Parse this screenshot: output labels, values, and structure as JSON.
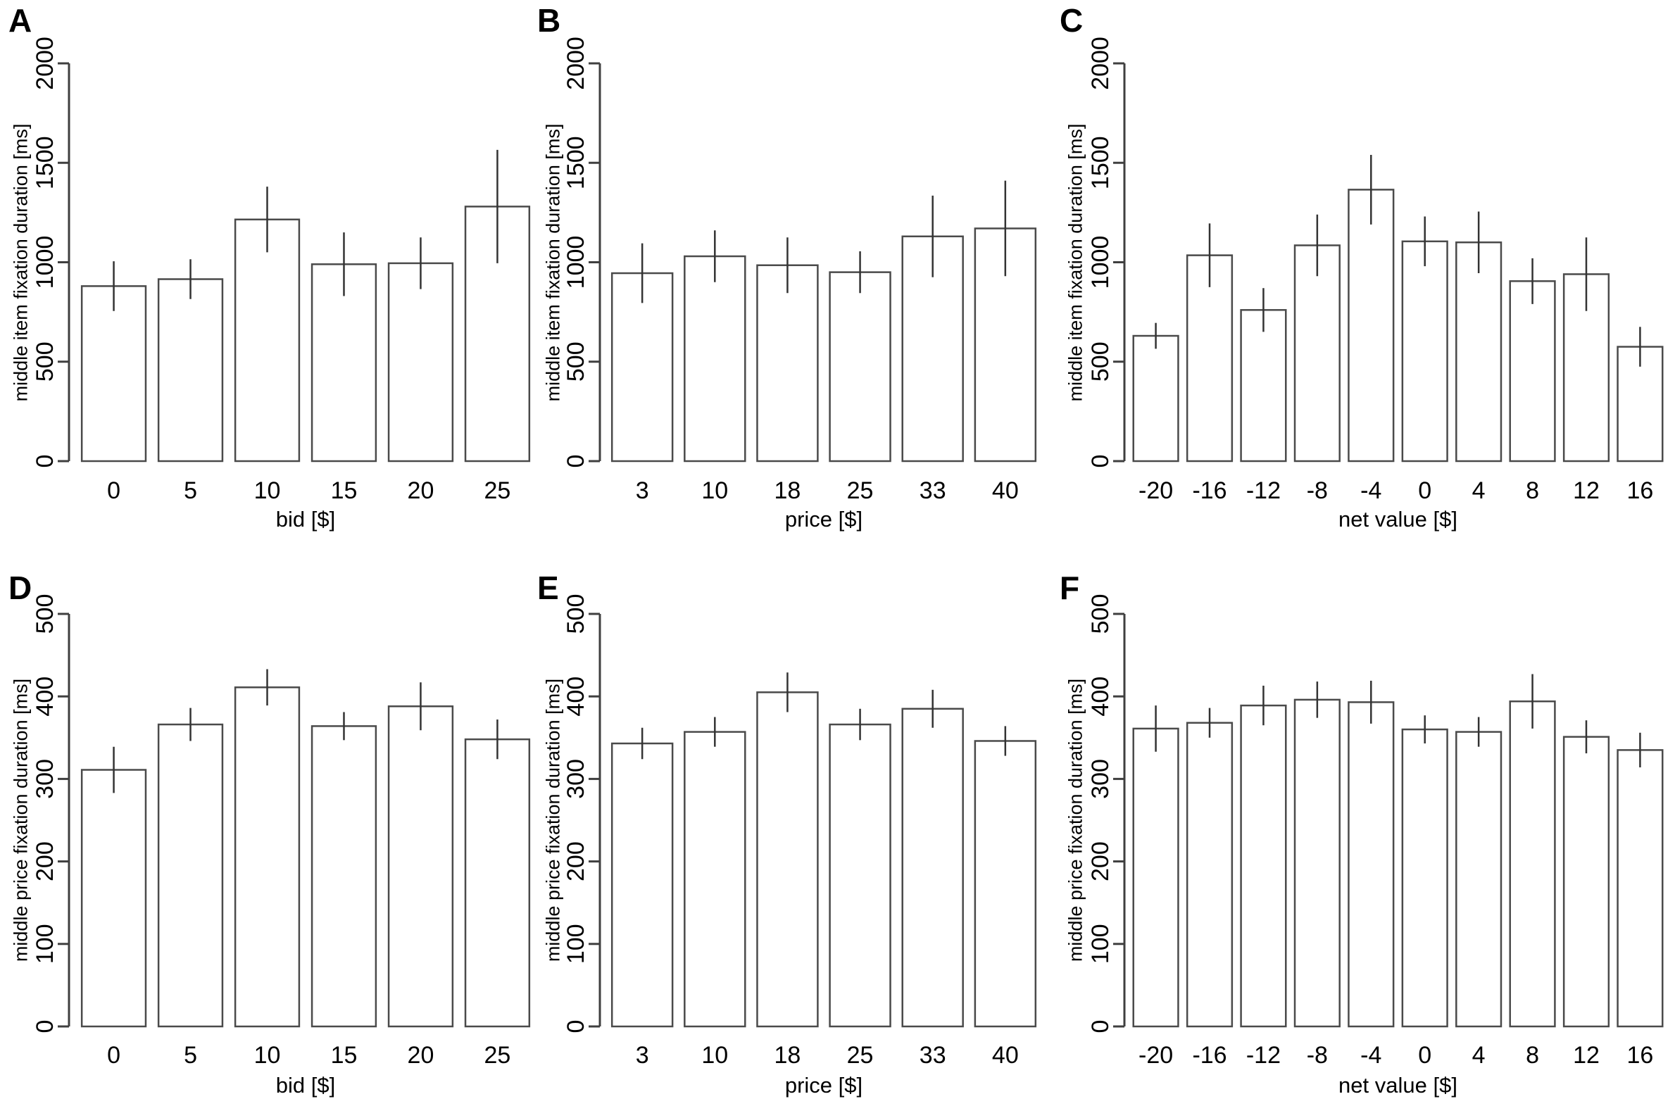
{
  "figure": {
    "background": "#ffffff",
    "axis_color": "#3f3f3f",
    "bar_border_color": "#4a4a4a",
    "bar_fill_color": "#ffffff",
    "error_bar_color": "#333333",
    "text_color": "#000000"
  },
  "chart_data": [
    {
      "type": "bar",
      "panel_label": "A",
      "ylabel": "middle item fixation duration [ms]",
      "xlabel": "bid [$]",
      "categories": [
        "0",
        "5",
        "10",
        "15",
        "20",
        "25"
      ],
      "values": [
        880,
        915,
        1215,
        990,
        995,
        1280
      ],
      "errors": [
        125,
        100,
        165,
        160,
        130,
        285
      ],
      "ylim": [
        0,
        2000
      ],
      "yticks": [
        0,
        500,
        1000,
        1500,
        2000
      ],
      "grid": false,
      "legend": "none"
    },
    {
      "type": "bar",
      "panel_label": "B",
      "ylabel": "middle item fixation duration [ms]",
      "xlabel": "price [$]",
      "categories": [
        "3",
        "10",
        "18",
        "25",
        "33",
        "40"
      ],
      "values": [
        945,
        1030,
        985,
        950,
        1130,
        1170
      ],
      "errors": [
        150,
        130,
        140,
        105,
        205,
        240
      ],
      "ylim": [
        0,
        2000
      ],
      "yticks": [
        0,
        500,
        1000,
        1500,
        2000
      ],
      "grid": false,
      "legend": "none"
    },
    {
      "type": "bar",
      "panel_label": "C",
      "ylabel": "middle item fixation duration [ms]",
      "xlabel": "net value [$]",
      "categories": [
        "-20",
        "-16",
        "-12",
        "-8",
        "-4",
        "0",
        "4",
        "8",
        "12",
        "16"
      ],
      "values": [
        630,
        1035,
        760,
        1085,
        1365,
        1105,
        1100,
        905,
        940,
        575
      ],
      "errors": [
        65,
        160,
        110,
        155,
        175,
        125,
        155,
        115,
        185,
        100
      ],
      "ylim": [
        0,
        2000
      ],
      "yticks": [
        0,
        500,
        1000,
        1500,
        2000
      ],
      "grid": false,
      "legend": "none"
    },
    {
      "type": "bar",
      "panel_label": "D",
      "ylabel": "middle price fixation duration [ms]",
      "xlabel": "bid [$]",
      "categories": [
        "0",
        "5",
        "10",
        "15",
        "20",
        "25"
      ],
      "values": [
        311,
        366,
        411,
        364,
        388,
        348
      ],
      "errors": [
        28,
        20,
        22,
        17,
        29,
        24
      ],
      "ylim": [
        0,
        500
      ],
      "yticks": [
        0,
        100,
        200,
        300,
        400,
        500
      ],
      "grid": false,
      "legend": "none"
    },
    {
      "type": "bar",
      "panel_label": "E",
      "ylabel": "middle price fixation duration [ms]",
      "xlabel": "price [$]",
      "categories": [
        "3",
        "10",
        "18",
        "25",
        "33",
        "40"
      ],
      "values": [
        343,
        357,
        405,
        366,
        385,
        346
      ],
      "errors": [
        19,
        18,
        24,
        19,
        23,
        18
      ],
      "ylim": [
        0,
        500
      ],
      "yticks": [
        0,
        100,
        200,
        300,
        400,
        500
      ],
      "grid": false,
      "legend": "none"
    },
    {
      "type": "bar",
      "panel_label": "F",
      "ylabel": "middle price fixation duration [ms]",
      "xlabel": "net value [$]",
      "categories": [
        "-20",
        "-16",
        "-12",
        "-8",
        "-4",
        "0",
        "4",
        "8",
        "12",
        "16"
      ],
      "values": [
        361,
        368,
        389,
        396,
        393,
        360,
        357,
        394,
        351,
        335
      ],
      "errors": [
        28,
        18,
        24,
        22,
        26,
        17,
        18,
        33,
        20,
        21
      ],
      "ylim": [
        0,
        500
      ],
      "yticks": [
        0,
        100,
        200,
        300,
        400,
        500
      ],
      "grid": false,
      "legend": "none"
    }
  ]
}
